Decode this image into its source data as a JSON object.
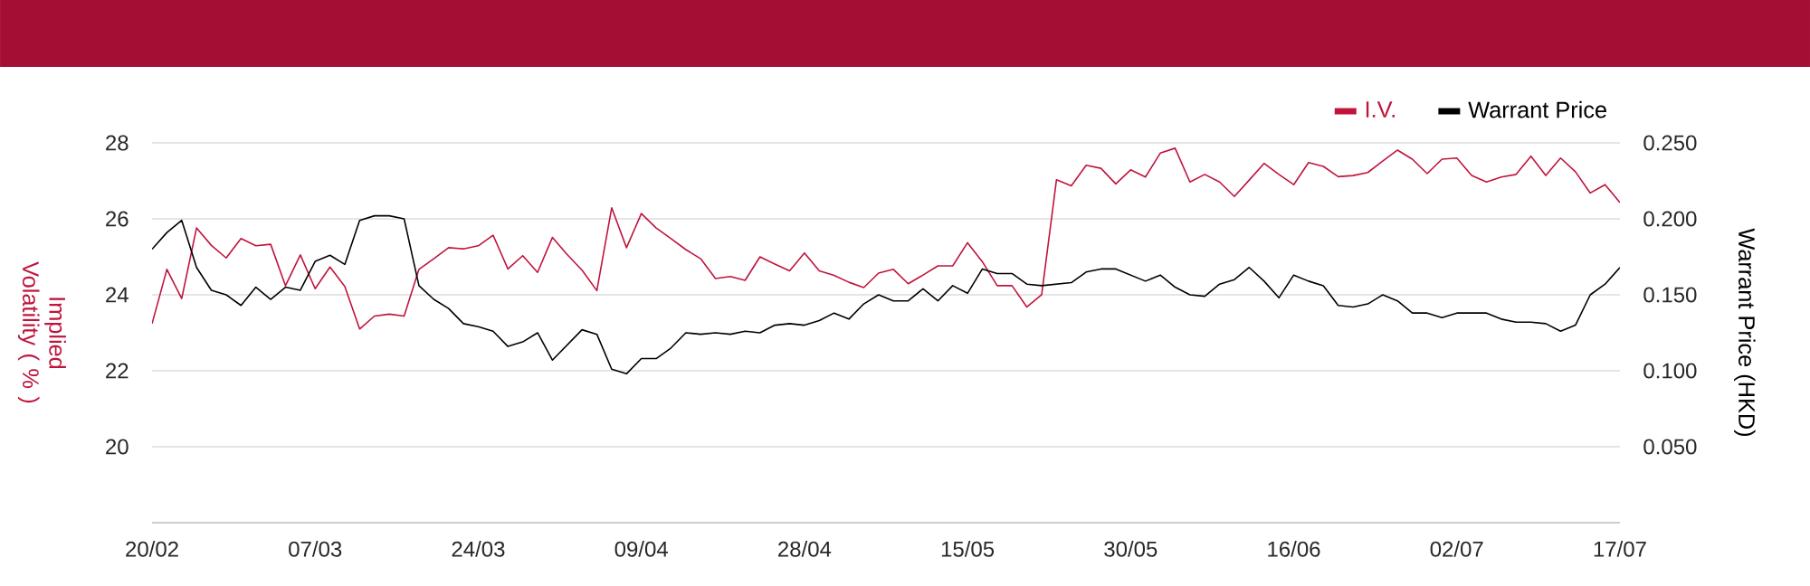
{
  "chart_data": {
    "type": "line",
    "categories": [
      "20/02",
      null,
      null,
      null,
      null,
      null,
      null,
      null,
      null,
      null,
      null,
      "07/03",
      null,
      null,
      null,
      null,
      null,
      null,
      null,
      null,
      null,
      null,
      "24/03",
      null,
      null,
      null,
      null,
      null,
      null,
      null,
      null,
      null,
      null,
      "09/04",
      null,
      null,
      null,
      null,
      null,
      null,
      null,
      null,
      null,
      null,
      "28/04",
      null,
      null,
      null,
      null,
      null,
      null,
      null,
      null,
      null,
      null,
      "15/05",
      null,
      null,
      null,
      null,
      null,
      null,
      null,
      null,
      null,
      null,
      "30/05",
      null,
      null,
      null,
      null,
      null,
      null,
      null,
      null,
      null,
      null,
      "16/06",
      null,
      null,
      null,
      null,
      null,
      null,
      null,
      null,
      null,
      null,
      "02/07",
      null,
      null,
      null,
      null,
      null,
      null,
      null,
      null,
      null,
      null,
      "17/07"
    ],
    "ylabel": "Implied Volatility ( % )",
    "y2label": "Warrant Price (HKD)",
    "ylim": [
      18,
      28
    ],
    "yticks": [
      20,
      22,
      24,
      26,
      28
    ],
    "y2lim": [
      0,
      0.25
    ],
    "y2ticks": [
      {
        "value": 0.05,
        "label": "0.050"
      },
      {
        "value": 0.1,
        "label": "0.100"
      },
      {
        "value": 0.15,
        "label": "0.150"
      },
      {
        "value": 0.2,
        "label": "0.200"
      },
      {
        "value": 0.25,
        "label": "0.250"
      }
    ],
    "grid": "y",
    "legend": "top right",
    "series": [
      {
        "name": "I.V.",
        "color": "#c0143c",
        "values": [
          23.24,
          24.67,
          23.9,
          25.76,
          25.3,
          24.97,
          25.48,
          25.29,
          25.33,
          24.24,
          25.05,
          24.16,
          24.73,
          24.22,
          23.1,
          23.44,
          23.49,
          23.44,
          24.67,
          24.95,
          25.24,
          25.21,
          25.29,
          25.57,
          24.68,
          25.03,
          24.59,
          25.51,
          25.06,
          24.65,
          24.11,
          26.29,
          25.24,
          26.14,
          25.76,
          25.48,
          25.19,
          24.95,
          24.43,
          24.48,
          24.38,
          25.0,
          24.81,
          24.63,
          25.1,
          24.63,
          24.51,
          24.33,
          24.19,
          24.57,
          24.67,
          24.29,
          24.52,
          24.76,
          24.76,
          25.37,
          24.87,
          24.24,
          24.24,
          23.68,
          24.0,
          27.03,
          26.87,
          27.41,
          27.33,
          26.92,
          27.29,
          27.1,
          27.73,
          27.86,
          26.97,
          27.17,
          26.97,
          26.59,
          27.02,
          27.46,
          27.17,
          26.9,
          27.48,
          27.38,
          27.11,
          27.14,
          27.22,
          27.52,
          27.81,
          27.57,
          27.19,
          27.57,
          27.6,
          27.14,
          26.97,
          27.1,
          27.17,
          27.65,
          27.14,
          27.6,
          27.24,
          26.68,
          26.9,
          26.43
        ]
      },
      {
        "name": "Warrant Price",
        "color": "#000000",
        "axis": "y2",
        "values": [
          0.18,
          0.191,
          0.199,
          0.168,
          0.153,
          0.15,
          0.143,
          0.155,
          0.147,
          0.155,
          0.153,
          0.172,
          0.176,
          0.17,
          0.199,
          0.202,
          0.202,
          0.2,
          0.156,
          0.147,
          0.141,
          0.131,
          0.129,
          0.126,
          0.116,
          0.119,
          0.125,
          0.107,
          0.117,
          0.127,
          0.124,
          0.101,
          0.098,
          0.108,
          0.108,
          0.115,
          0.125,
          0.124,
          0.125,
          0.124,
          0.126,
          0.125,
          0.13,
          0.131,
          0.13,
          0.133,
          0.138,
          0.134,
          0.144,
          0.15,
          0.146,
          0.146,
          0.154,
          0.146,
          0.156,
          0.151,
          0.167,
          0.164,
          0.164,
          0.157,
          0.156,
          0.157,
          0.158,
          0.165,
          0.167,
          0.167,
          0.163,
          0.159,
          0.163,
          0.155,
          0.15,
          0.149,
          0.157,
          0.16,
          0.168,
          0.159,
          0.148,
          0.163,
          0.159,
          0.156,
          0.143,
          0.142,
          0.144,
          0.15,
          0.146,
          0.138,
          0.138,
          0.135,
          0.138,
          0.138,
          0.138,
          0.134,
          0.132,
          0.132,
          0.131,
          0.126,
          0.13,
          0.15,
          0.157,
          0.168
        ]
      }
    ]
  }
}
